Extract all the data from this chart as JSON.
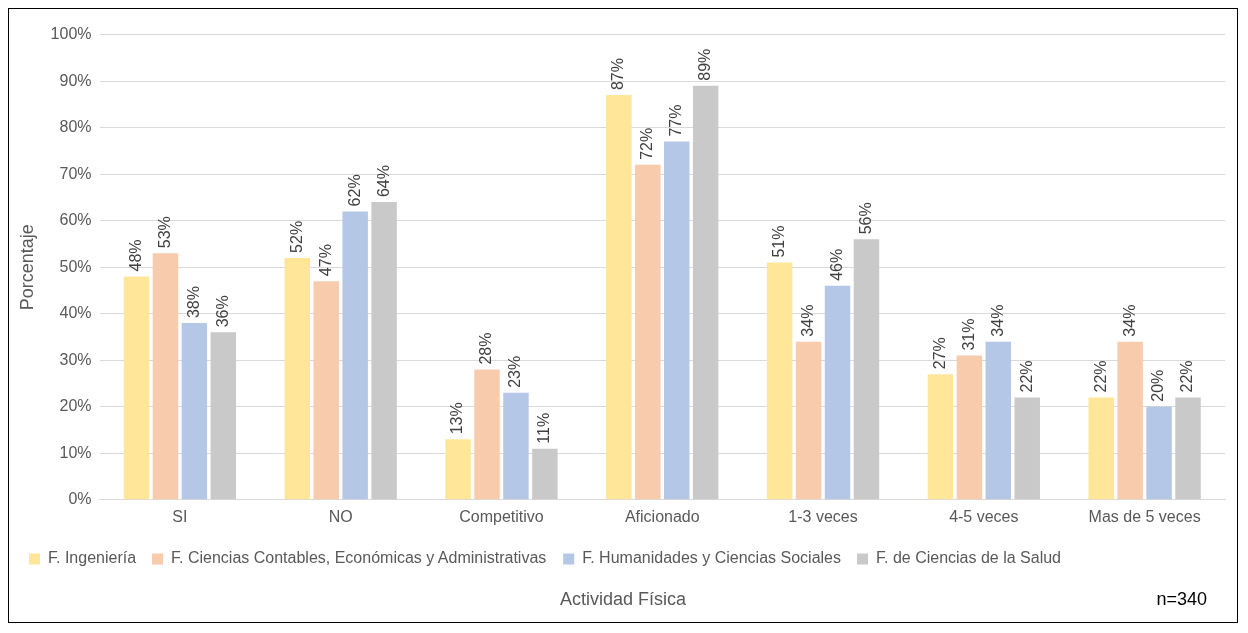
{
  "chart_data": {
    "type": "bar",
    "xlabel": "Actividad Física",
    "ylabel": "Porcentaje",
    "annotations": [
      "n=340"
    ],
    "categories": [
      "SI",
      "NO",
      "Competitivo",
      "Aficionado",
      "1-3 veces",
      "4-5 veces",
      "Mas de 5 veces"
    ],
    "series": [
      {
        "name": "F. Ingeniería",
        "color": "#ffe699",
        "values": [
          48,
          52,
          13,
          87,
          51,
          27,
          22
        ],
        "value_labels": [
          "48%",
          "52%",
          "13%",
          "87%",
          "51%",
          "27%",
          "22%"
        ]
      },
      {
        "name": "F. Ciencias Contables, Económicas y Administrativas",
        "color": "#f8cbad",
        "values": [
          53,
          47,
          28,
          72,
          34,
          31,
          34
        ],
        "value_labels": [
          "53%",
          "47%",
          "28%",
          "72%",
          "34%",
          "31%",
          "34%"
        ]
      },
      {
        "name": "F. Humanidades y Ciencias Sociales",
        "color": "#b4c7e7",
        "values": [
          38,
          62,
          23,
          77,
          46,
          34,
          20
        ],
        "value_labels": [
          "38%",
          "62%",
          "23%",
          "77%",
          "46%",
          "34%",
          "20%"
        ]
      },
      {
        "name": "F. de Ciencias de la Salud",
        "color": "#c9c9c9",
        "values": [
          36,
          64,
          11,
          89,
          56,
          22,
          22
        ],
        "value_labels": [
          "36%",
          "64%",
          "11%",
          "89%",
          "56%",
          "22%",
          "22%"
        ]
      }
    ],
    "ylim": [
      0,
      100
    ],
    "yticks": [
      {
        "value": 0,
        "label": "0%"
      },
      {
        "value": 10,
        "label": "10%"
      },
      {
        "value": 20,
        "label": "20%"
      },
      {
        "value": 30,
        "label": "30%"
      },
      {
        "value": 40,
        "label": "40%"
      },
      {
        "value": 50,
        "label": "50%"
      },
      {
        "value": 60,
        "label": "60%"
      },
      {
        "value": 70,
        "label": "70%"
      },
      {
        "value": 80,
        "label": "80%"
      },
      {
        "value": 90,
        "label": "90%"
      },
      {
        "value": 100,
        "label": "100%"
      }
    ],
    "grid": "y",
    "legend": "bottom"
  }
}
